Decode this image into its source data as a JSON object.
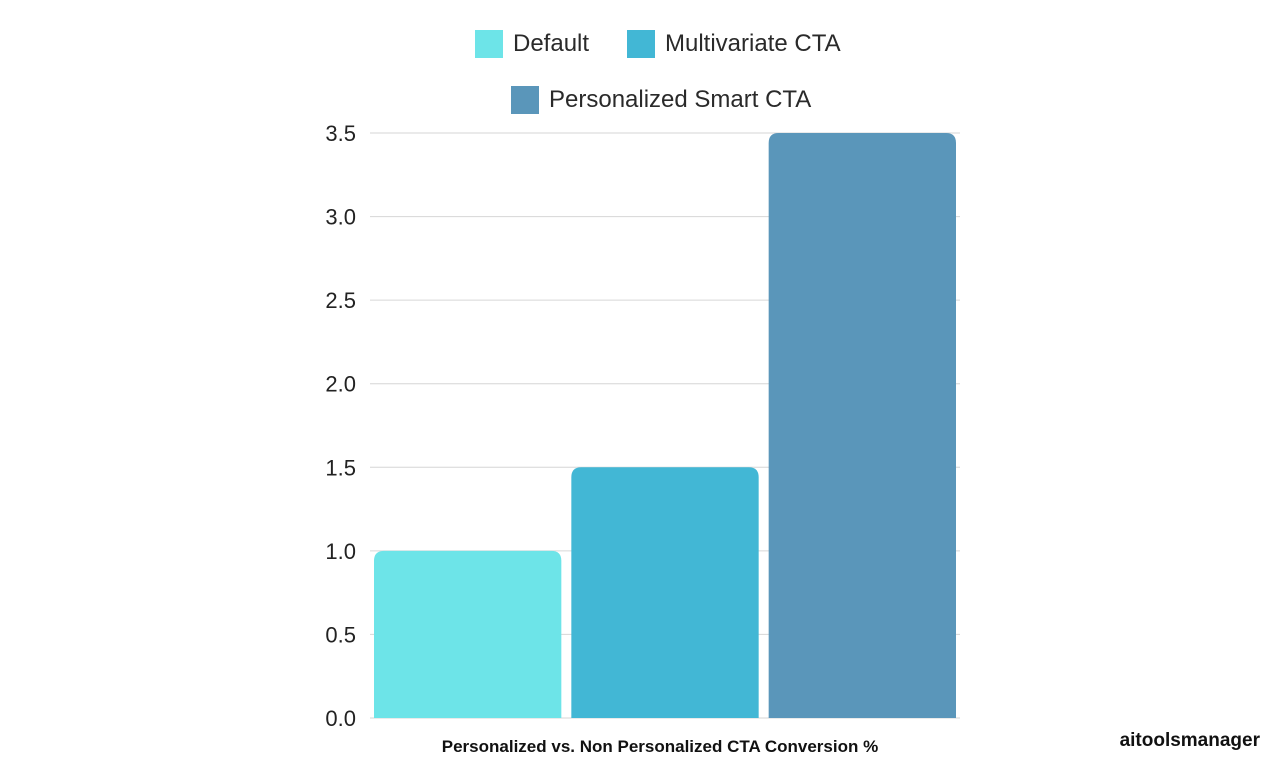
{
  "chart_data": {
    "type": "bar",
    "title": "",
    "xlabel": "Personalized vs. Non Personalized CTA Conversion %",
    "ylabel": "",
    "ylim": [
      0,
      3.5
    ],
    "yticks": [
      "0.0",
      "0.5",
      "1.0",
      "1.5",
      "2.0",
      "2.5",
      "3.0",
      "3.5"
    ],
    "grid": true,
    "legend_position": "top-center",
    "series": [
      {
        "name": "Default",
        "values": [
          1.0
        ],
        "color": "#6DE4E8"
      },
      {
        "name": "Multivariate CTA",
        "values": [
          1.5
        ],
        "color": "#42B7D5"
      },
      {
        "name": "Personalized Smart CTA",
        "values": [
          3.5
        ],
        "color": "#5A96BA"
      }
    ]
  },
  "watermark": "aitoolsmanager"
}
